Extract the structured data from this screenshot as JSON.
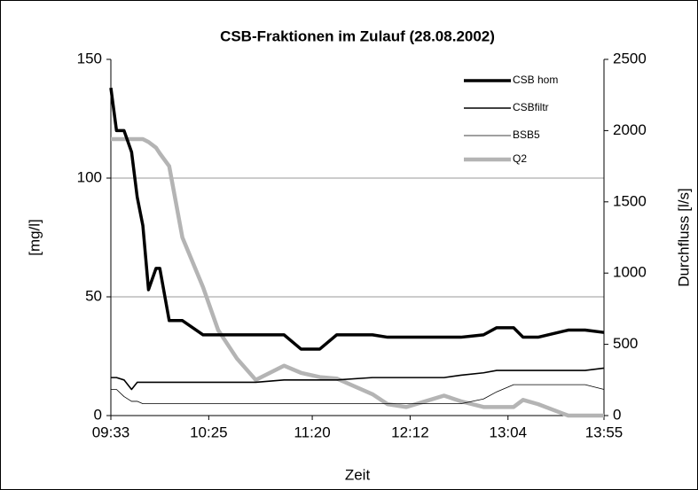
{
  "chart_data": {
    "type": "line",
    "title": "CSB-Fraktionen im Zulauf (28.08.2002)",
    "xlabel": "Zeit",
    "ylabel": "[mg/l]",
    "y2label": "Durchfluss [l/s]",
    "x": [
      "09:33",
      "09:36",
      "09:40",
      "09:44",
      "09:47",
      "09:50",
      "09:53",
      "09:57",
      "09:59",
      "10:04",
      "10:11",
      "10:22",
      "10:30",
      "10:40",
      "10:50",
      "11:05",
      "11:14",
      "11:24",
      "11:33",
      "11:52",
      "12:00",
      "12:10",
      "12:20",
      "12:30",
      "12:39",
      "12:51",
      "12:58",
      "13:07",
      "13:12",
      "13:20",
      "13:36",
      "13:45",
      "13:55"
    ],
    "xlim": [
      "09:33",
      "13:55"
    ],
    "xticks": [
      "09:33",
      "10:25",
      "11:20",
      "12:12",
      "13:04",
      "13:55"
    ],
    "ylim": [
      0,
      150
    ],
    "yticks": [
      0,
      50,
      100,
      150
    ],
    "y2lim": [
      0,
      2500
    ],
    "y2ticks": [
      0,
      500,
      1000,
      1500,
      2000,
      2500
    ],
    "grid": true,
    "legend": "upper right",
    "series": [
      {
        "name": "CSB hom",
        "color": "#000000",
        "width": 3.5,
        "values": [
          138,
          120,
          120,
          111,
          92,
          80,
          53,
          62,
          62,
          40,
          40,
          34,
          34,
          34,
          34,
          34,
          28,
          28,
          34,
          34,
          33,
          33,
          33,
          33,
          33,
          34,
          37,
          37,
          33,
          33,
          36,
          36,
          35
        ]
      },
      {
        "name": "CSBfiltr",
        "color": "#000000",
        "width": 1.6,
        "values": [
          16,
          16,
          15,
          11,
          14,
          14,
          14,
          14,
          14,
          14,
          14,
          14,
          14,
          14,
          14,
          15,
          15,
          15,
          15,
          16,
          16,
          16,
          16,
          16,
          17,
          18,
          19,
          19,
          19,
          19,
          19,
          19,
          20
        ]
      },
      {
        "name": "BSB5",
        "color": "#000000",
        "width": 0.8,
        "values": [
          11,
          11,
          8,
          6,
          6,
          5,
          5,
          5,
          5,
          5,
          5,
          5,
          5,
          5,
          5,
          5,
          5,
          5,
          5,
          5,
          5,
          5,
          5,
          5,
          5,
          7,
          10,
          13,
          13,
          13,
          13,
          13,
          11
        ]
      },
      {
        "name": "Q2",
        "color": "#b4b4b4",
        "width": 4.5,
        "axis": "y2",
        "values": [
          1940,
          1940,
          1940,
          1940,
          1940,
          1940,
          1920,
          1880,
          1840,
          1750,
          1250,
          900,
          600,
          400,
          250,
          350,
          300,
          270,
          260,
          150,
          80,
          60,
          100,
          140,
          100,
          60,
          60,
          60,
          110,
          80,
          0,
          0,
          0
        ]
      }
    ]
  }
}
